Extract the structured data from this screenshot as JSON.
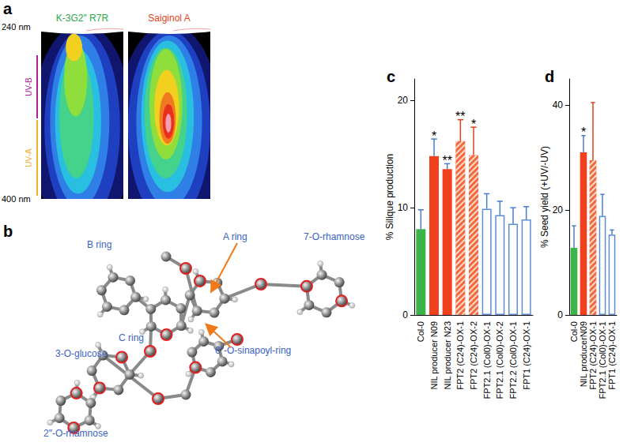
{
  "panel_a": {
    "title": "a",
    "spectra": [
      {
        "title": "K-3G2″ R7R",
        "color": "#2aa84a"
      },
      {
        "title": "Saiginol A",
        "color": "#e8401c"
      }
    ],
    "y_labels": [
      "240 nm",
      "400 nm"
    ],
    "bands": [
      {
        "label": "UV-B",
        "color": "#b0209a"
      },
      {
        "label": "UV-A",
        "color": "#f0b428"
      }
    ]
  },
  "panel_b": {
    "title": "b",
    "color": "#3b63c4",
    "labels": [
      "B ring",
      "A ring",
      "7-O-rhamnose",
      "C ring",
      "3-O-glucose",
      "6″-O-sinapoyl-ring",
      "2″-O-rhamnose"
    ]
  },
  "chart_data": [
    {
      "type": "bar",
      "title": "c",
      "ylabel": "% Silique production",
      "categories": [
        "Col-0",
        "NIL producer N09",
        "NIL producer N23",
        "FPT2 (C24)-OX-1",
        "FPT2 (C24)-OX-2",
        "FPT2.1 (Col0)-OX-1",
        "FPT2.1 (Col0)-OX-2",
        "FPT2.2 (Col0)-OX-1",
        "FPT1 (C24)-OX-1"
      ],
      "values": [
        8.0,
        14.8,
        13.6,
        16.2,
        14.9,
        9.9,
        9.3,
        8.5,
        8.9
      ],
      "errors": [
        1.8,
        1.6,
        0.5,
        2.0,
        2.6,
        1.4,
        1.3,
        1.5,
        1.2
      ],
      "colors": [
        "#3cb44b",
        "#f0401c",
        "#f0401c",
        "#f26a3c",
        "#f26a3c",
        "#ffffff",
        "#ffffff",
        "#ffffff",
        "#ffffff"
      ],
      "annotations": [
        {
          "category": "NIL producer N09",
          "text": "*"
        },
        {
          "category": "NIL producer N23",
          "text": "**"
        },
        {
          "category": "FPT2 (C24)-OX-1",
          "text": "**"
        },
        {
          "category": "FPT2 (C24)-OX-2",
          "text": "*"
        }
      ],
      "ylim": [
        0,
        22
      ],
      "yticks": [
        0,
        10,
        20
      ],
      "grid": false
    },
    {
      "type": "bar",
      "title": "d",
      "ylabel": "% Seed yield (+UV/-UV)",
      "categories": [
        "Col-0",
        "NIL producerN09",
        "FPT2 (C24)-OX-1",
        "FPT2.1 (Col0)-OX-1",
        "FPT1 (C24)-OX-1"
      ],
      "values": [
        12.8,
        31.0,
        29.5,
        18.9,
        15.3
      ],
      "errors": [
        4.2,
        3.2,
        11.0,
        4.1,
        0.9
      ],
      "colors": [
        "#3cb44b",
        "#f0401c",
        "#f26a3c",
        "#ffffff",
        "#ffffff"
      ],
      "annotations": [
        {
          "category": "NIL producerN09",
          "text": "*"
        }
      ],
      "ylim": [
        0,
        45
      ],
      "yticks": [
        0,
        20,
        40
      ],
      "grid": false
    }
  ]
}
